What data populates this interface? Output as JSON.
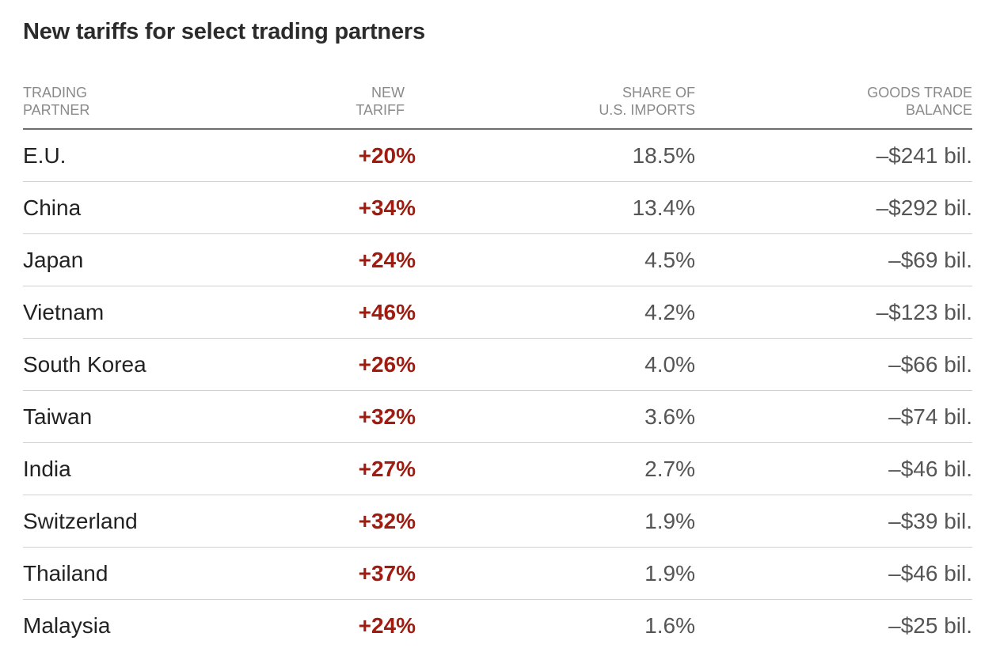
{
  "colors": {
    "tariff_red": "#a01b10",
    "header_gray": "#8a8a8a",
    "value_gray": "#555555",
    "text_dark": "#222222"
  },
  "chart_data": {
    "type": "table",
    "title": "New tariffs for select trading partners",
    "columns": [
      [
        "TRADING",
        "PARTNER"
      ],
      [
        "NEW",
        "TARIFF"
      ],
      [
        "SHARE OF",
        "U.S. IMPORTS"
      ],
      [
        "GOODS TRADE",
        "BALANCE"
      ]
    ],
    "rows": [
      {
        "partner": "E.U.",
        "tariff": "+20%",
        "share": "18.5%",
        "balance": "–$241 bil."
      },
      {
        "partner": "China",
        "tariff": "+34%",
        "share": "13.4%",
        "balance": "–$292 bil."
      },
      {
        "partner": "Japan",
        "tariff": "+24%",
        "share": "4.5%",
        "balance": "–$69 bil."
      },
      {
        "partner": "Vietnam",
        "tariff": "+46%",
        "share": "4.2%",
        "balance": "–$123 bil."
      },
      {
        "partner": "South Korea",
        "tariff": "+26%",
        "share": "4.0%",
        "balance": "–$66 bil."
      },
      {
        "partner": "Taiwan",
        "tariff": "+32%",
        "share": "3.6%",
        "balance": "–$74 bil."
      },
      {
        "partner": "India",
        "tariff": "+27%",
        "share": "2.7%",
        "balance": "–$46 bil."
      },
      {
        "partner": "Switzerland",
        "tariff": "+32%",
        "share": "1.9%",
        "balance": "–$39 bil."
      },
      {
        "partner": "Thailand",
        "tariff": "+37%",
        "share": "1.9%",
        "balance": "–$46 bil."
      },
      {
        "partner": "Malaysia",
        "tariff": "+24%",
        "share": "1.6%",
        "balance": "–$25 bil."
      }
    ]
  }
}
